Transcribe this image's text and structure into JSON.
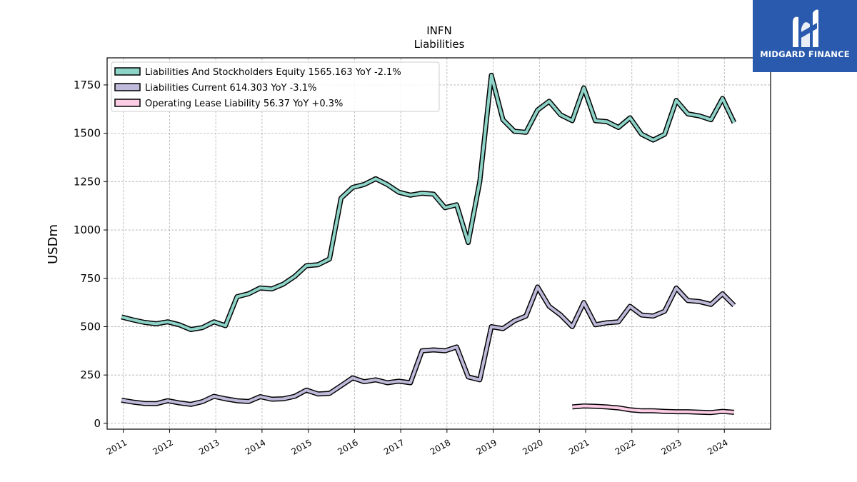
{
  "chart_data": {
    "type": "line",
    "title": "INFN",
    "subtitle": "Liabilities",
    "ylabel": "USDm",
    "ylim": [
      -30,
      1890
    ],
    "yticks": [
      0,
      250,
      500,
      750,
      1000,
      1250,
      1500,
      1750
    ],
    "xlim": [
      2010.65,
      2025.0
    ],
    "xticks": [
      2011,
      2012,
      2013,
      2014,
      2015,
      2016,
      2017,
      2018,
      2019,
      2020,
      2021,
      2022,
      2023,
      2024
    ],
    "grid": true,
    "legend_position": "upper-left",
    "series": [
      {
        "name": "Liabilities And Stockholders Equity",
        "legend": "Liabilities And Stockholders Equity  1565.163 YoY -2.1%",
        "color": "#8dd3c7",
        "x": [
          2010.96,
          2011.21,
          2011.46,
          2011.71,
          2011.96,
          2012.21,
          2012.46,
          2012.71,
          2012.96,
          2013.21,
          2013.46,
          2013.71,
          2013.96,
          2014.21,
          2014.46,
          2014.71,
          2014.96,
          2015.21,
          2015.46,
          2015.71,
          2015.96,
          2016.21,
          2016.46,
          2016.71,
          2016.96,
          2017.21,
          2017.46,
          2017.71,
          2017.96,
          2018.21,
          2018.46,
          2018.71,
          2018.96,
          2019.21,
          2019.46,
          2019.71,
          2019.96,
          2020.21,
          2020.46,
          2020.71,
          2020.96,
          2021.21,
          2021.46,
          2021.71,
          2021.96,
          2022.21,
          2022.46,
          2022.71,
          2022.96,
          2023.21,
          2023.46,
          2023.71,
          2023.96,
          2024.21
        ],
        "values": [
          550,
          535,
          522,
          515,
          525,
          510,
          485,
          495,
          525,
          505,
          655,
          670,
          700,
          695,
          720,
          760,
          815,
          820,
          850,
          1165,
          1220,
          1235,
          1265,
          1235,
          1195,
          1180,
          1190,
          1185,
          1115,
          1130,
          935,
          1250,
          1800,
          1570,
          1510,
          1505,
          1620,
          1665,
          1595,
          1565,
          1735,
          1565,
          1560,
          1530,
          1580,
          1495,
          1465,
          1495,
          1670,
          1600,
          1590,
          1570,
          1680,
          1555
        ]
      },
      {
        "name": "Liabilities Current",
        "legend": "Liabilities Current  614.303 YoY -3.1%",
        "color": "#bebada",
        "x": [
          2010.96,
          2011.21,
          2011.46,
          2011.71,
          2011.96,
          2012.21,
          2012.46,
          2012.71,
          2012.96,
          2013.21,
          2013.46,
          2013.71,
          2013.96,
          2014.21,
          2014.46,
          2014.71,
          2014.96,
          2015.21,
          2015.46,
          2015.71,
          2015.96,
          2016.21,
          2016.46,
          2016.71,
          2016.96,
          2017.21,
          2017.46,
          2017.71,
          2017.96,
          2018.21,
          2018.46,
          2018.71,
          2018.96,
          2019.21,
          2019.46,
          2019.71,
          2019.96,
          2020.21,
          2020.46,
          2020.71,
          2020.96,
          2021.21,
          2021.46,
          2021.71,
          2021.96,
          2022.21,
          2022.46,
          2022.71,
          2022.96,
          2023.21,
          2023.46,
          2023.71,
          2023.96,
          2024.21
        ],
        "values": [
          120,
          110,
          103,
          102,
          117,
          106,
          98,
          112,
          140,
          127,
          117,
          113,
          138,
          125,
          127,
          140,
          172,
          152,
          155,
          195,
          235,
          215,
          225,
          210,
          218,
          210,
          375,
          380,
          375,
          395,
          240,
          225,
          500,
          490,
          530,
          555,
          705,
          605,
          560,
          500,
          625,
          510,
          520,
          525,
          605,
          560,
          555,
          580,
          700,
          635,
          630,
          615,
          670,
          610
        ]
      },
      {
        "name": "Operating Lease Liability",
        "legend": "Operating Lease Liability  56.37 YoY +0.3%",
        "color": "#fccde5",
        "x": [
          2020.71,
          2020.96,
          2021.21,
          2021.46,
          2021.71,
          2021.96,
          2022.21,
          2022.46,
          2022.71,
          2022.96,
          2023.21,
          2023.46,
          2023.71,
          2023.96,
          2024.21
        ],
        "values": [
          85,
          90,
          88,
          85,
          80,
          70,
          65,
          65,
          62,
          60,
          60,
          58,
          56,
          62,
          57
        ]
      }
    ]
  },
  "logo": {
    "text": "MIDGARD FINANCE",
    "color": "#2a5aad"
  }
}
